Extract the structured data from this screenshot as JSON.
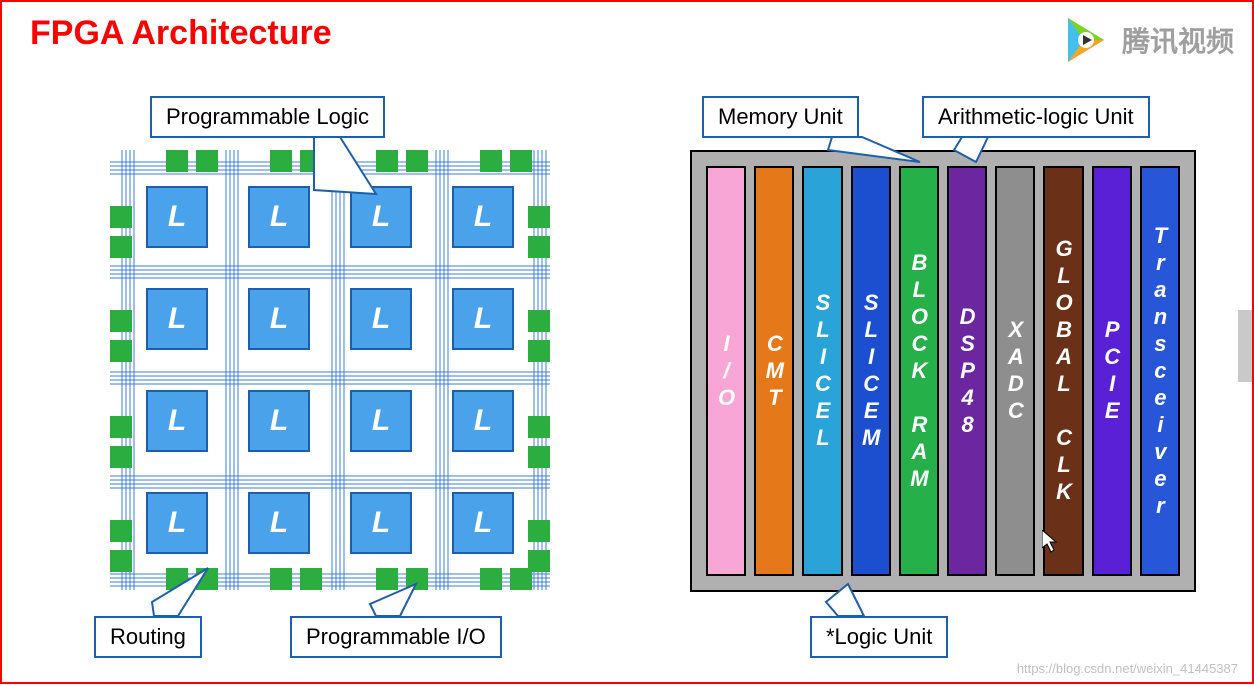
{
  "title": "FPGA Architecture",
  "title_color": "#ff0000",
  "title_fontsize": 34,
  "watermark_text": "腾讯视频",
  "faint_url": "https://blog.csdn.net/weixin_41445387",
  "left_grid": {
    "rows": 4,
    "cols": 4,
    "cell_label": "L",
    "cell_bg": "#4aa3ea",
    "cell_border": "#1e5fad",
    "cell_text_color": "#ffffff",
    "routing_line_color": "#3d7fd6",
    "io_pad_color": "#2bad3f"
  },
  "left_callouts": {
    "prog_logic": "Programmable Logic",
    "routing": "Routing",
    "prog_io": "Programmable I/O"
  },
  "right_columns": [
    {
      "label": "I/O",
      "color": "#f7a6d6"
    },
    {
      "label": "CMT",
      "color": "#e57818"
    },
    {
      "label": "SLICEL",
      "color": "#2aa4d8"
    },
    {
      "label": "SLICEM",
      "color": "#1c4fd0"
    },
    {
      "label": "BLOCK RAM",
      "color": "#26b04a"
    },
    {
      "label": "DSP48",
      "color": "#6b26a0"
    },
    {
      "label": "XADC",
      "color": "#8e8e8e"
    },
    {
      "label": "GLOBAL CLK",
      "color": "#6a3018"
    },
    {
      "label": "PCIE",
      "color": "#5920d6"
    },
    {
      "label": "Transceiver",
      "color": "#2757d8"
    }
  ],
  "right_bg": "#b0b0b0",
  "right_callouts": {
    "memory": "Memory Unit",
    "alu": "Arithmetic-logic Unit",
    "logic": "*Logic  Unit"
  },
  "callout_border": "#1e5fad",
  "callout_fontsize": 22
}
